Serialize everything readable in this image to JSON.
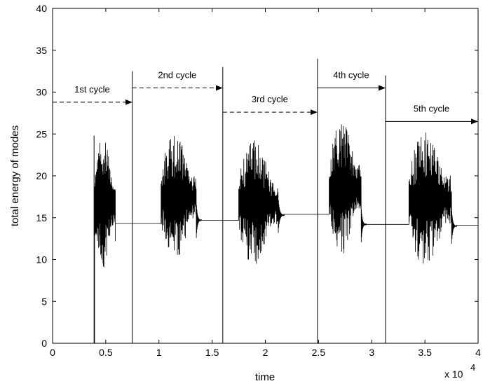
{
  "chart_data": {
    "type": "line",
    "title": "",
    "xlabel": "time",
    "ylabel": "total energy of modes",
    "x_multiplier_label": "x 10",
    "x_multiplier_exponent": "4",
    "xlim": [
      0,
      40000
    ],
    "ylim": [
      0,
      40
    ],
    "x_ticks": [
      0,
      5000,
      10000,
      15000,
      20000,
      25000,
      30000,
      35000,
      40000
    ],
    "x_tick_labels": [
      "0",
      "0.5",
      "1",
      "1.5",
      "2",
      "2.5",
      "3",
      "3.5",
      "4"
    ],
    "y_ticks": [
      0,
      5,
      10,
      15,
      20,
      25,
      30,
      35,
      40
    ],
    "y_tick_labels": [
      "0",
      "5",
      "10",
      "15",
      "20",
      "25",
      "30",
      "35",
      "40"
    ],
    "grid": false,
    "line_color": "#000000",
    "series": [
      {
        "segments": [
          {
            "start": 3950,
            "end": 5900,
            "oscillation_end": 5900,
            "baseline": 14.3,
            "env_max": 24.8,
            "env_min": 8.9
          },
          {
            "start": 10200,
            "end": 14000,
            "oscillation_end": 13500,
            "baseline": 14.7,
            "env_max": 25.1,
            "env_min": 9.7
          },
          {
            "start": 17500,
            "end": 21800,
            "oscillation_end": 21200,
            "baseline": 15.3,
            "env_max": 24.3,
            "env_min": 9.2
          },
          {
            "start": 26000,
            "end": 29500,
            "oscillation_end": 29000,
            "baseline": 14.2,
            "env_max": 26.5,
            "env_min": 10.5
          },
          {
            "start": 33500,
            "end": 38000,
            "oscillation_end": 37500,
            "baseline": 14.0,
            "env_max": 25.4,
            "env_min": 8.9
          }
        ],
        "flat_levels": [
          {
            "from": 5900,
            "to": 10200,
            "value": 14.3
          },
          {
            "from": 14000,
            "to": 17500,
            "value": 14.7
          },
          {
            "from": 21800,
            "to": 26000,
            "value": 15.4
          },
          {
            "from": 29500,
            "to": 33500,
            "value": 14.2
          },
          {
            "from": 38000,
            "to": 40000,
            "value": 14.1
          }
        ]
      }
    ],
    "cycle_markers": [
      {
        "x": 3900,
        "y_top": 0
      },
      {
        "x": 7500,
        "y_top": 32.5
      },
      {
        "x": 16000,
        "y_top": 33.0
      },
      {
        "x": 24900,
        "y_top": 34.0
      },
      {
        "x": 31300,
        "y_top": 32.0
      }
    ],
    "annotations": [
      {
        "label": "1st cycle",
        "x_from": 0,
        "x_to": 7500,
        "y_arrow": 28.8,
        "dashed": true
      },
      {
        "label": "2nd cycle",
        "x_from": 7500,
        "x_to": 16000,
        "y_arrow": 30.5,
        "dashed": true
      },
      {
        "label": "3rd cycle",
        "x_from": 16000,
        "x_to": 24900,
        "y_arrow": 27.6,
        "dashed": true
      },
      {
        "label": "4th cycle",
        "x_from": 24900,
        "x_to": 31300,
        "y_arrow": 30.5,
        "dashed": false
      },
      {
        "label": "5th cycle",
        "x_from": 31300,
        "x_to": 40000,
        "y_arrow": 26.5,
        "dashed": false
      }
    ]
  }
}
